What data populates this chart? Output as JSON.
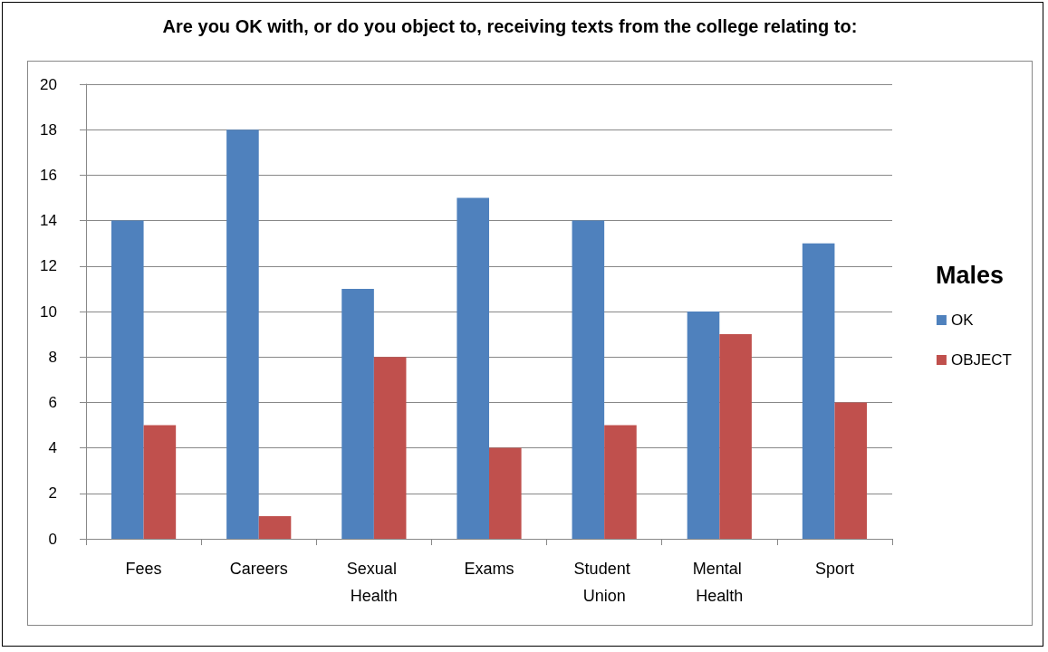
{
  "chart_data": {
    "type": "bar",
    "title": "Are you OK with, or do you object to, receiving texts from the college relating to:",
    "legend_title": "Males",
    "categories": [
      "Fees",
      "Careers",
      "Sexual Health",
      "Exams",
      "Student Union",
      "Mental Health",
      "Sport"
    ],
    "series": [
      {
        "name": "OK",
        "color": "#4f81bd",
        "values": [
          14,
          18,
          11,
          15,
          14,
          10,
          13
        ]
      },
      {
        "name": "OBJECT",
        "color": "#c0504d",
        "values": [
          5,
          1,
          8,
          4,
          5,
          9,
          6
        ]
      }
    ],
    "ylim": [
      0,
      20
    ],
    "yticks": [
      0,
      2,
      4,
      6,
      8,
      10,
      12,
      14,
      16,
      18,
      20
    ],
    "grid": "y",
    "legend": "right"
  }
}
